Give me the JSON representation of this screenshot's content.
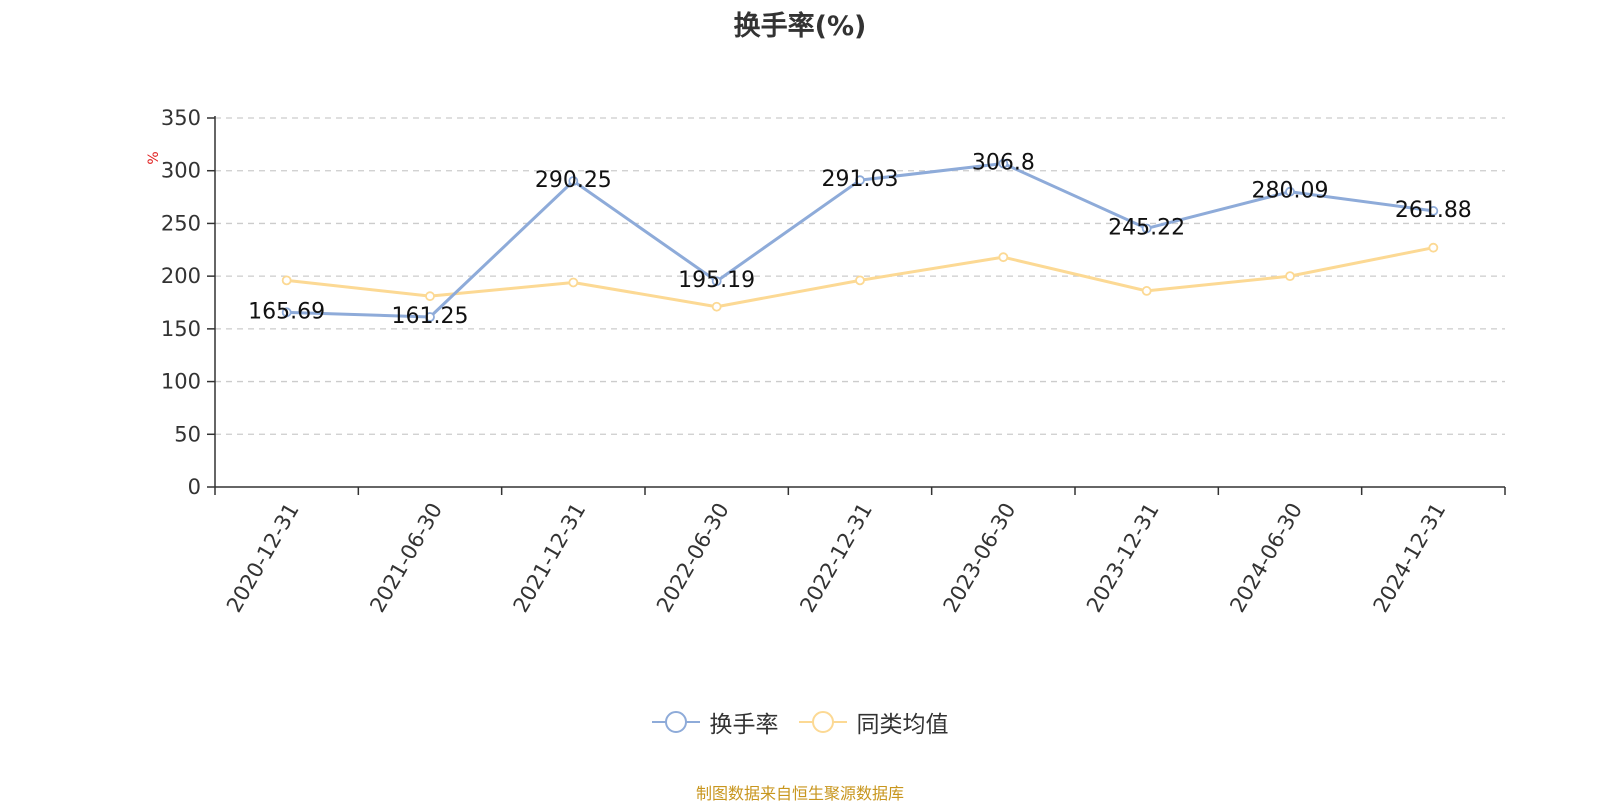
{
  "title": "换手率(%)",
  "source_note": "制图数据来自恒生聚源数据库",
  "chart_data": {
    "type": "line",
    "title": "换手率(%)",
    "ylabel": "%",
    "ylim": [
      0,
      350
    ],
    "yticks": [
      0,
      50,
      100,
      150,
      200,
      250,
      300,
      350
    ],
    "grid": true,
    "legend_position": "bottom",
    "categories": [
      "2020-12-31",
      "2021-06-30",
      "2021-12-31",
      "2022-06-30",
      "2022-12-31",
      "2023-06-30",
      "2023-12-31",
      "2024-06-30",
      "2024-12-31"
    ],
    "series": [
      {
        "name": "换手率",
        "color": "#8eabd9",
        "values": [
          165.69,
          161.25,
          290.25,
          195.19,
          291.03,
          306.8,
          245.22,
          280.09,
          261.88
        ],
        "labels": [
          "165.69",
          "161.25",
          "290.25",
          "195.19",
          "291.03",
          "306.8",
          "245.22",
          "280.09",
          "261.88"
        ]
      },
      {
        "name": "同类均值",
        "color": "#fcd994",
        "values": [
          196,
          181,
          194,
          171,
          196,
          218,
          186,
          200,
          227
        ]
      }
    ]
  }
}
